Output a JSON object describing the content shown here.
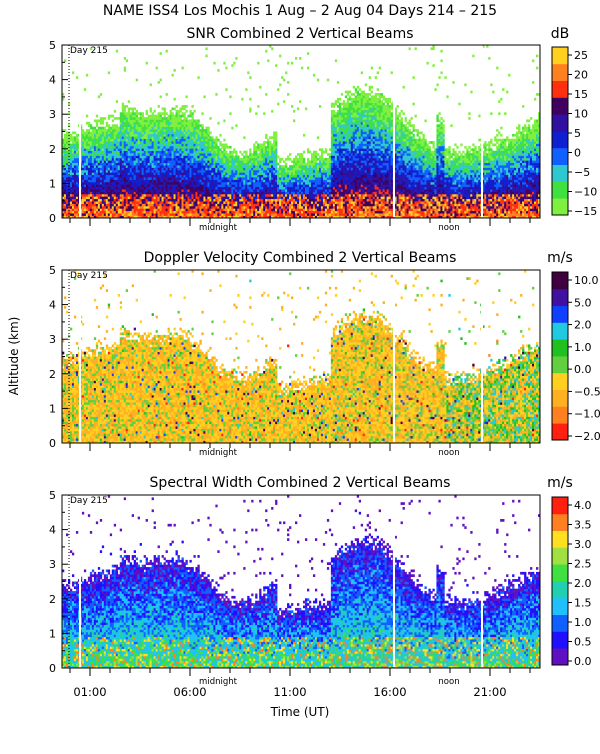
{
  "header": {
    "title": "NAME ISS4 Los Mochis    1 Aug –  2 Aug 04 Days 214 – 215"
  },
  "shared": {
    "day_marker": "Day 215",
    "event_labels": [
      "midnight",
      "noon"
    ],
    "y_axis_label": "Altitude (km)",
    "x_axis_label": "Time (UT)",
    "x_ticks": [
      "01:00",
      "06:00",
      "11:00",
      "16:00",
      "21:00"
    ]
  },
  "colors": {
    "snr": [
      "#80f040",
      "#40e040",
      "#30c8d0",
      "#1060ff",
      "#1020d0",
      "#3010a0",
      "#400060",
      "#ff3010",
      "#ff8020",
      "#ffd020"
    ],
    "doppler": [
      "#ff2010",
      "#ff8020",
      "#ffb020",
      "#ffd020",
      "#60d040",
      "#20c020",
      "#20c8e0",
      "#1040ff",
      "#4010a0",
      "#400040"
    ],
    "width": [
      "#6010c0",
      "#2010ff",
      "#1060ff",
      "#20c0ff",
      "#20d0b0",
      "#40e040",
      "#a0e040",
      "#ffe020",
      "#ff8020",
      "#ff2010"
    ]
  },
  "chart_data": [
    {
      "type": "heatmap",
      "title": "SNR Combined 2 Vertical Beams",
      "units": "dB",
      "colorbar_ticks": [
        "25",
        "20",
        "15",
        "10",
        "5",
        "0",
        "−5",
        "−10",
        "−15"
      ],
      "colorbar_range": [
        -15,
        28
      ],
      "ylim": [
        0,
        5
      ],
      "y_ticks": [
        "0",
        "1",
        "2",
        "3",
        "4",
        "5"
      ],
      "xlim": [
        -0.4,
        23.5
      ],
      "x_tick_values": [
        1,
        6,
        11,
        16,
        21
      ],
      "midnight_hour": 7.6,
      "noon_hour": 19.6,
      "day_boundary_hour": -0.4
    },
    {
      "type": "heatmap",
      "title": "Doppler Velocity Combined 2 Vertical Beams",
      "units": "m/s",
      "colorbar_ticks": [
        "10.0",
        "5.0",
        "2.0",
        "1.0",
        "0.0",
        "−0.5",
        "−1.0",
        "−2.0"
      ],
      "colorbar_range": [
        -2,
        10
      ],
      "ylim": [
        0,
        5
      ],
      "y_ticks": [
        "0",
        "1",
        "2",
        "3",
        "4",
        "5"
      ],
      "xlim": [
        -0.4,
        23.5
      ],
      "x_tick_values": [
        1,
        6,
        11,
        16,
        21
      ],
      "midnight_hour": 7.6,
      "noon_hour": 19.6,
      "day_boundary_hour": -0.4
    },
    {
      "type": "heatmap",
      "title": "Spectral Width Combined 2 Vertical Beams",
      "units": "m/s",
      "colorbar_ticks": [
        "4.0",
        "3.5",
        "3.0",
        "2.5",
        "2.0",
        "1.5",
        "1.0",
        "0.5",
        "0.0"
      ],
      "colorbar_range": [
        0,
        4.3
      ],
      "ylim": [
        0,
        5
      ],
      "y_ticks": [
        "0",
        "1",
        "2",
        "3",
        "4",
        "5"
      ],
      "xlim": [
        -0.4,
        23.5
      ],
      "x_tick_values": [
        1,
        6,
        11,
        16,
        21
      ],
      "midnight_hour": 7.6,
      "noon_hour": 19.6,
      "day_boundary_hour": -0.4
    }
  ]
}
